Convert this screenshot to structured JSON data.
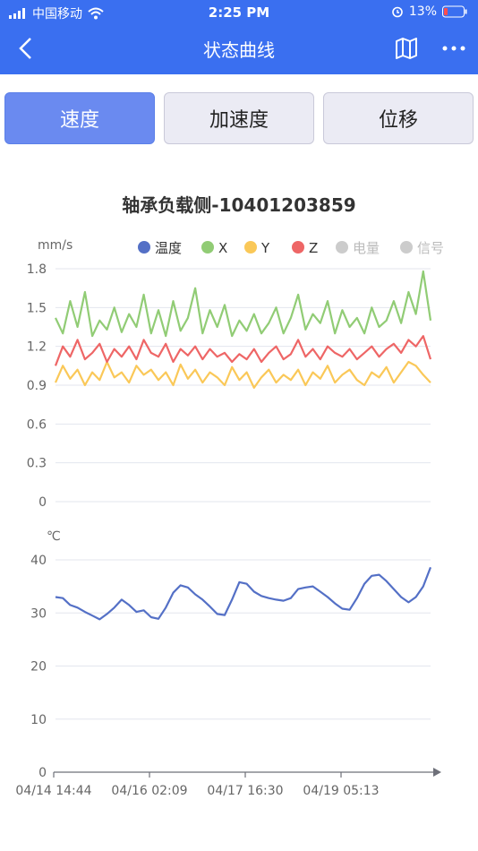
{
  "status_bar": {
    "carrier": "中国移动",
    "time": "2:25 PM",
    "battery": "13%"
  },
  "header": {
    "title": "状态曲线",
    "back_icon": "back-chevron-icon",
    "map_icon": "map-icon",
    "more_icon": "more-dots-icon"
  },
  "tabs": [
    {
      "label": "速度",
      "active": true
    },
    {
      "label": "加速度",
      "active": false
    },
    {
      "label": "位移",
      "active": false
    }
  ],
  "colors": {
    "primary": "#3a6ff0",
    "x": "#91cc75",
    "y": "#fac858",
    "z": "#ee6666",
    "temperature": "#5470c6",
    "inactive": "#cccccc"
  },
  "chart_data": {
    "type": "line",
    "title": "轴承负载侧-10401203859",
    "legend": [
      {
        "name": "温度",
        "active": true
      },
      {
        "name": "X",
        "active": true
      },
      {
        "name": "Y",
        "active": true
      },
      {
        "name": "Z",
        "active": true
      },
      {
        "name": "电量",
        "active": false
      },
      {
        "name": "信号",
        "active": false
      }
    ],
    "legend_position": "top",
    "grid": true,
    "x_ticks": [
      "04/14 14:44",
      "04/16 02:09",
      "04/17 16:30",
      "04/19 05:13"
    ],
    "panels": [
      {
        "ylabel": "mm/s",
        "ylim": [
          0,
          1.8
        ],
        "yticks": [
          "0",
          "0.3",
          "0.6",
          "0.9",
          "1.2",
          "1.5",
          "1.8"
        ],
        "series": [
          {
            "name": "X",
            "values": [
              1.42,
              1.3,
              1.55,
              1.35,
              1.62,
              1.28,
              1.4,
              1.33,
              1.5,
              1.31,
              1.45,
              1.35,
              1.6,
              1.3,
              1.48,
              1.28,
              1.55,
              1.32,
              1.42,
              1.65,
              1.3,
              1.48,
              1.35,
              1.52,
              1.28,
              1.4,
              1.32,
              1.45,
              1.3,
              1.38,
              1.5,
              1.3,
              1.42,
              1.6,
              1.33,
              1.45,
              1.38,
              1.55,
              1.3,
              1.48,
              1.35,
              1.42,
              1.3,
              1.5,
              1.35,
              1.4,
              1.55,
              1.38,
              1.62,
              1.45,
              1.78,
              1.4
            ]
          },
          {
            "name": "Y",
            "values": [
              0.92,
              1.05,
              0.95,
              1.02,
              0.9,
              1.0,
              0.94,
              1.08,
              0.96,
              1.0,
              0.92,
              1.05,
              0.98,
              1.02,
              0.94,
              1.0,
              0.9,
              1.06,
              0.95,
              1.02,
              0.92,
              1.0,
              0.96,
              0.9,
              1.04,
              0.94,
              1.0,
              0.88,
              0.96,
              1.02,
              0.92,
              0.98,
              0.94,
              1.02,
              0.9,
              1.0,
              0.95,
              1.05,
              0.92,
              0.98,
              1.02,
              0.94,
              0.9,
              1.0,
              0.96,
              1.04,
              0.92,
              1.0,
              1.08,
              1.05,
              0.98,
              0.92
            ]
          },
          {
            "name": "Z",
            "values": [
              1.05,
              1.2,
              1.12,
              1.25,
              1.1,
              1.15,
              1.22,
              1.08,
              1.18,
              1.12,
              1.2,
              1.1,
              1.25,
              1.15,
              1.12,
              1.22,
              1.08,
              1.18,
              1.13,
              1.2,
              1.1,
              1.18,
              1.12,
              1.15,
              1.08,
              1.14,
              1.1,
              1.18,
              1.08,
              1.15,
              1.2,
              1.1,
              1.14,
              1.25,
              1.12,
              1.18,
              1.1,
              1.2,
              1.15,
              1.12,
              1.18,
              1.1,
              1.15,
              1.2,
              1.12,
              1.18,
              1.22,
              1.15,
              1.25,
              1.2,
              1.28,
              1.1
            ]
          }
        ]
      },
      {
        "ylabel": "℃",
        "ylim": [
          0,
          40
        ],
        "yticks": [
          "0",
          "10",
          "20",
          "30",
          "40"
        ],
        "series": [
          {
            "name": "温度",
            "values": [
              33.0,
              32.8,
              31.5,
              31.0,
              30.2,
              29.5,
              28.8,
              29.8,
              31.0,
              32.5,
              31.5,
              30.2,
              30.5,
              29.2,
              28.9,
              31.0,
              33.8,
              35.2,
              34.8,
              33.5,
              32.5,
              31.2,
              29.8,
              29.6,
              32.5,
              35.8,
              35.5,
              34.0,
              33.2,
              32.8,
              32.5,
              32.3,
              32.8,
              34.5,
              34.8,
              35.0,
              34.0,
              33.0,
              31.8,
              30.8,
              30.6,
              32.8,
              35.5,
              37.0,
              37.2,
              36.0,
              34.5,
              33.0,
              32.0,
              33.0,
              35.0,
              38.6
            ]
          }
        ]
      }
    ]
  }
}
